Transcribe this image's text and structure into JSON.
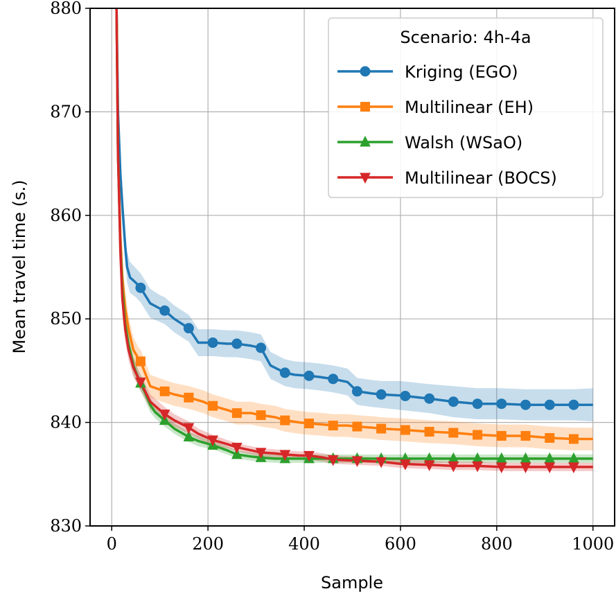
{
  "chart_data": {
    "type": "line",
    "xlabel": "Sample",
    "ylabel": "Mean travel time (s.)",
    "xlim": [
      -45,
      1045
    ],
    "ylim": [
      830,
      880
    ],
    "xticks": [
      0,
      200,
      400,
      600,
      800,
      1000
    ],
    "yticks": [
      830,
      840,
      850,
      860,
      870,
      880
    ],
    "grid": true,
    "legend": {
      "title": "Scenario:  4h-4a",
      "placement": "top-right"
    },
    "series": [
      {
        "name": "Kriging (EGO)",
        "color": "#1f77b4",
        "marker": "circle",
        "x": [
          10,
          13,
          18,
          22,
          28,
          32,
          38,
          50,
          60,
          80,
          100,
          110,
          130,
          160,
          180,
          210,
          240,
          260,
          290,
          310,
          330,
          360,
          380,
          410,
          430,
          460,
          490,
          510,
          540,
          560,
          600,
          660,
          710,
          760,
          810,
          860,
          910,
          960,
          1000
        ],
        "y": [
          880,
          870,
          864,
          861,
          857,
          855,
          854,
          853.5,
          853,
          851.5,
          851,
          850.8,
          850,
          849.1,
          847.7,
          847.7,
          847.6,
          847.6,
          847.4,
          847.2,
          845.5,
          844.8,
          844.6,
          844.5,
          844.4,
          844.2,
          843.9,
          843.0,
          842.8,
          842.7,
          842.6,
          842.3,
          842.0,
          841.8,
          841.8,
          841.7,
          841.7,
          841.7,
          841.7
        ],
        "band": [
          3.0,
          2.5,
          2.0,
          1.8,
          1.6,
          1.5,
          1.5,
          1.4,
          1.4,
          1.4,
          1.3,
          1.3,
          1.3,
          1.3,
          1.3,
          1.3,
          1.3,
          1.3,
          1.3,
          1.3,
          1.3,
          1.3,
          1.3,
          1.3,
          1.3,
          1.3,
          1.3,
          1.3,
          1.3,
          1.3,
          1.4,
          1.4,
          1.5,
          1.5,
          1.5,
          1.5,
          1.5,
          1.5,
          1.6
        ],
        "markers": [
          60,
          110,
          160,
          210,
          260,
          310,
          360,
          410,
          460,
          510,
          560,
          610,
          660,
          710,
          760,
          810,
          860,
          910,
          960
        ]
      },
      {
        "name": "Multilinear (EH)",
        "color": "#ff7f0e",
        "marker": "square",
        "x": [
          10,
          13,
          18,
          22,
          28,
          35,
          45,
          55,
          60,
          80,
          110,
          130,
          160,
          190,
          210,
          240,
          260,
          290,
          310,
          340,
          360,
          390,
          410,
          440,
          460,
          490,
          510,
          540,
          560,
          600,
          660,
          710,
          760,
          810,
          860,
          910,
          960,
          1000
        ],
        "y": [
          880,
          866,
          858,
          854,
          851,
          849,
          847,
          846.2,
          845.9,
          843.5,
          843.0,
          842.7,
          842.4,
          842.0,
          841.6,
          841.2,
          840.9,
          840.9,
          840.7,
          840.5,
          840.2,
          840.0,
          839.9,
          839.8,
          839.7,
          839.7,
          839.6,
          839.5,
          839.4,
          839.3,
          839.1,
          839.0,
          838.8,
          838.7,
          838.7,
          838.5,
          838.4,
          838.4
        ],
        "band": [
          3.0,
          2.5,
          2.0,
          1.8,
          1.5,
          1.3,
          1.2,
          1.1,
          1.1,
          1.1,
          1.1,
          1.1,
          1.1,
          1.1,
          1.1,
          1.1,
          1.1,
          1.1,
          1.1,
          1.1,
          1.1,
          1.1,
          1.1,
          1.1,
          1.1,
          1.1,
          1.1,
          1.1,
          1.1,
          1.1,
          1.1,
          1.1,
          1.1,
          1.1,
          1.1,
          1.1,
          1.1,
          1.1
        ],
        "markers": [
          60,
          110,
          160,
          210,
          260,
          310,
          360,
          410,
          460,
          510,
          560,
          610,
          660,
          710,
          760,
          810,
          860,
          910,
          960
        ]
      },
      {
        "name": "Walsh (WSaO)",
        "color": "#2ca02c",
        "marker": "triangle-up",
        "x": [
          10,
          13,
          18,
          22,
          28,
          35,
          45,
          55,
          60,
          70,
          80,
          90,
          110,
          130,
          160,
          180,
          210,
          240,
          260,
          290,
          310,
          340,
          360,
          400,
          460,
          510,
          560,
          600,
          700,
          800,
          900,
          1000
        ],
        "y": [
          880,
          866,
          857,
          853,
          849.5,
          847.5,
          845.5,
          844.3,
          843.8,
          842.8,
          841.7,
          841.0,
          840.2,
          839.4,
          838.6,
          838.2,
          837.8,
          837.3,
          836.9,
          836.7,
          836.6,
          836.5,
          836.5,
          836.5,
          836.5,
          836.5,
          836.5,
          836.5,
          836.5,
          836.5,
          836.5,
          836.5
        ],
        "band": [
          3.0,
          2.5,
          2.0,
          1.5,
          1.2,
          1.0,
          0.9,
          0.8,
          0.8,
          0.7,
          0.7,
          0.6,
          0.6,
          0.5,
          0.5,
          0.5,
          0.4,
          0.4,
          0.4,
          0.4,
          0.4,
          0.4,
          0.4,
          0.4,
          0.4,
          0.4,
          0.4,
          0.4,
          0.4,
          0.4,
          0.4,
          0.4
        ],
        "markers": [
          60,
          110,
          160,
          210,
          260,
          310,
          360,
          410,
          460,
          510,
          560,
          610,
          660,
          710,
          760,
          810,
          860,
          910,
          960
        ]
      },
      {
        "name": "Multilinear (BOCS)",
        "color": "#d62728",
        "marker": "triangle-down",
        "x": [
          10,
          13,
          18,
          22,
          28,
          35,
          45,
          55,
          60,
          80,
          110,
          130,
          160,
          180,
          210,
          240,
          260,
          290,
          310,
          340,
          360,
          390,
          410,
          440,
          460,
          510,
          560,
          600,
          660,
          710,
          760,
          810,
          860,
          910,
          960,
          1000
        ],
        "y": [
          880,
          866,
          856.5,
          852,
          849,
          847,
          845.3,
          844.3,
          843.9,
          842.0,
          840.8,
          840.2,
          839.5,
          838.9,
          838.3,
          837.9,
          837.6,
          837.3,
          837.1,
          837.0,
          836.9,
          836.8,
          836.8,
          836.6,
          836.4,
          836.3,
          836.2,
          836.0,
          835.9,
          835.8,
          835.8,
          835.7,
          835.7,
          835.7,
          835.7,
          835.7
        ],
        "band": [
          3.0,
          2.5,
          2.0,
          1.5,
          1.2,
          1.0,
          0.9,
          0.8,
          0.8,
          0.7,
          0.7,
          0.6,
          0.6,
          0.5,
          0.5,
          0.4,
          0.4,
          0.4,
          0.4,
          0.4,
          0.4,
          0.4,
          0.4,
          0.4,
          0.4,
          0.4,
          0.4,
          0.4,
          0.4,
          0.4,
          0.4,
          0.4,
          0.4,
          0.4,
          0.4,
          0.4
        ],
        "markers": [
          60,
          110,
          160,
          210,
          260,
          310,
          360,
          410,
          460,
          510,
          560,
          610,
          660,
          710,
          760,
          810,
          860,
          910,
          960
        ]
      }
    ]
  }
}
